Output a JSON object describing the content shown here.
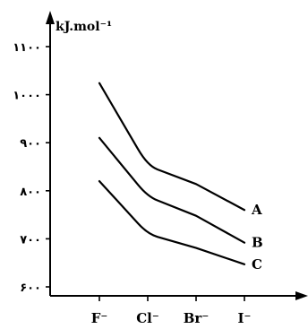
{
  "chart_data": {
    "type": "line",
    "ylabel": "kJ.mol⁻¹",
    "categories": [
      "F⁻",
      "Cl⁻",
      "Br⁻",
      "I⁻"
    ],
    "yticks": [
      {
        "value": 600,
        "label": "۶۰۰"
      },
      {
        "value": 700,
        "label": "۷۰۰"
      },
      {
        "value": 800,
        "label": "۸۰۰"
      },
      {
        "value": 900,
        "label": "۹۰۰"
      },
      {
        "value": 1000,
        "label": "۱۰۰۰"
      },
      {
        "value": 1100,
        "label": "۱۱۰۰"
      }
    ],
    "ylim": [
      590,
      1140
    ],
    "series": [
      {
        "name": "A",
        "values": [
          1024,
          852,
          814,
          760
        ]
      },
      {
        "name": "B",
        "values": [
          910,
          788,
          748,
          692
        ]
      },
      {
        "name": "C",
        "values": [
          820,
          710,
          681,
          647
        ]
      }
    ],
    "grid": false
  }
}
